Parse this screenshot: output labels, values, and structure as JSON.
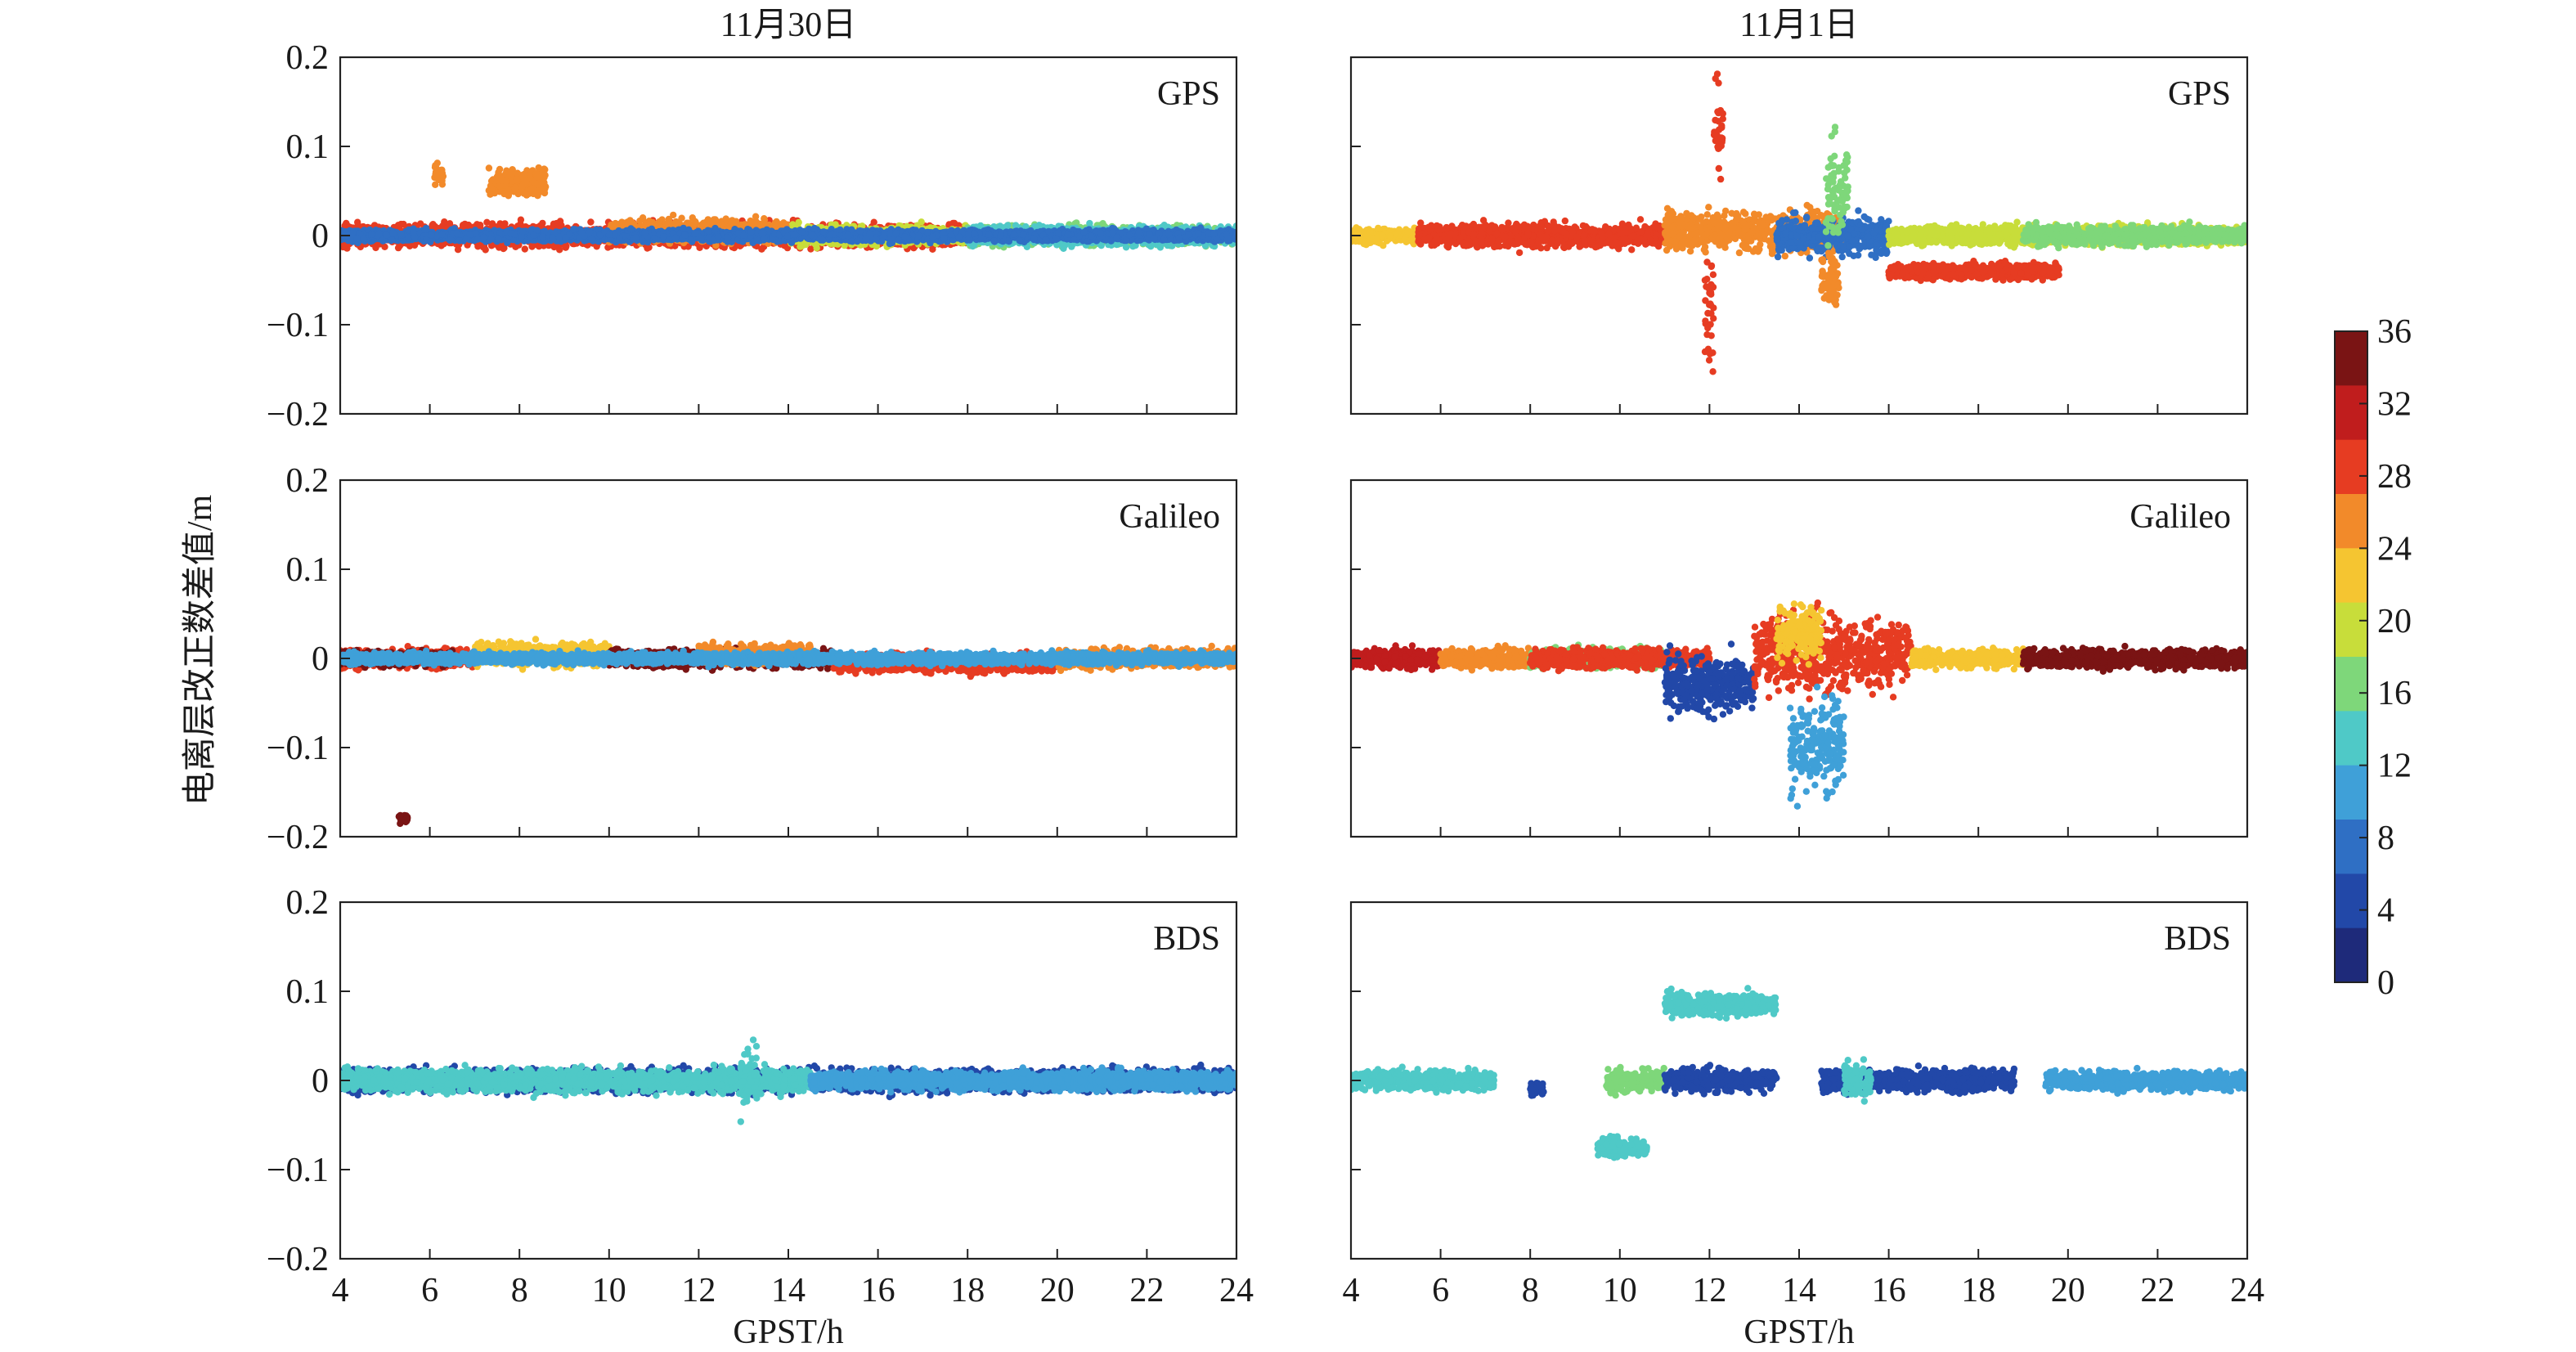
{
  "figure": {
    "ylabel": "电离层改正数差值/m",
    "xlabel": "GPST/h",
    "columns": [
      "11月30日",
      "11月1日"
    ],
    "colorbar": {
      "min": 0,
      "max": 36,
      "ticks": [
        "36",
        "32",
        "28",
        "24",
        "20",
        "16",
        "12",
        "8",
        "4",
        "0"
      ],
      "colors": [
        "#1e2a7a",
        "#2248a8",
        "#2f6fc4",
        "#3fa0d8",
        "#4fc9c7",
        "#7ed77a",
        "#c8dd3a",
        "#f5c531",
        "#f28a2a",
        "#e63c22",
        "#c01d1d",
        "#7a1414"
      ]
    }
  },
  "chart_data": [
    {
      "type": "scatter",
      "system": "GPS",
      "date": "11月30日",
      "xlim": [
        4,
        24
      ],
      "ylim": [
        -0.2,
        0.2
      ],
      "xticks": [
        "4",
        "6",
        "8",
        "10",
        "12",
        "14",
        "16",
        "18",
        "20",
        "22",
        "24"
      ],
      "yticks": [
        "0.2",
        "0.1",
        "0",
        "−0.1",
        "−0.2"
      ],
      "segments": [
        {
          "from": 4,
          "to": 18,
          "center": 0.0,
          "spread": 0.012,
          "color": "#e63c22"
        },
        {
          "from": 10,
          "to": 14,
          "center": 0.005,
          "spread": 0.012,
          "color": "#f28a2a"
        },
        {
          "from": 14,
          "to": 18,
          "center": 0.0,
          "spread": 0.01,
          "color": "#c8dd3a"
        },
        {
          "from": 18,
          "to": 24,
          "center": 0.0,
          "spread": 0.01,
          "color": "#7ed77a"
        },
        {
          "from": 18,
          "to": 24,
          "center": 0.0,
          "spread": 0.01,
          "color": "#4fc9c7"
        },
        {
          "from": 4,
          "to": 24,
          "center": 0.0,
          "spread": 0.006,
          "color": "#2f6fc4"
        },
        {
          "from": 7.3,
          "to": 8.6,
          "center": 0.06,
          "spread": 0.015,
          "color": "#f28a2a"
        },
        {
          "from": 6.1,
          "to": 6.3,
          "center": 0.07,
          "spread": 0.01,
          "color": "#f28a2a"
        }
      ]
    },
    {
      "type": "scatter",
      "system": "GPS",
      "date": "11月1日",
      "xlim": [
        4,
        24
      ],
      "ylim": [
        -0.2,
        0.2
      ],
      "xticks": [
        "4",
        "6",
        "8",
        "10",
        "12",
        "14",
        "16",
        "18",
        "20",
        "22",
        "24"
      ],
      "yticks": [
        "0.2",
        "0.1",
        "0",
        "−0.1",
        "−0.2"
      ],
      "segments": [
        {
          "from": 4,
          "to": 5.5,
          "center": 0.0,
          "spread": 0.008,
          "color": "#f5c531"
        },
        {
          "from": 5.5,
          "to": 11,
          "center": 0.0,
          "spread": 0.012,
          "color": "#e63c22"
        },
        {
          "from": 11,
          "to": 15,
          "center": 0.005,
          "spread": 0.02,
          "color": "#f28a2a"
        },
        {
          "from": 13.5,
          "to": 16,
          "center": 0.0,
          "spread": 0.02,
          "color": "#2f6fc4"
        },
        {
          "from": 16,
          "to": 19.8,
          "center": -0.04,
          "spread": 0.008,
          "color": "#e63c22"
        },
        {
          "from": 16,
          "to": 24,
          "center": 0.0,
          "spread": 0.01,
          "color": "#c8dd3a"
        },
        {
          "from": 19,
          "to": 24,
          "center": 0.0,
          "spread": 0.01,
          "color": "#7ed77a"
        },
        {
          "from": 11.9,
          "to": 12.1,
          "center": -0.08,
          "spread": 0.06,
          "color": "#e63c22"
        },
        {
          "from": 12.1,
          "to": 12.3,
          "center": 0.12,
          "spread": 0.05,
          "color": "#e63c22"
        },
        {
          "from": 14.6,
          "to": 15.1,
          "center": 0.05,
          "spread": 0.05,
          "color": "#7ed77a"
        },
        {
          "from": 14.5,
          "to": 14.9,
          "center": -0.05,
          "spread": 0.03,
          "color": "#f28a2a"
        }
      ]
    },
    {
      "type": "scatter",
      "system": "Galileo",
      "date": "11月30日",
      "xlim": [
        4,
        24
      ],
      "ylim": [
        -0.2,
        0.2
      ],
      "xticks": [
        "4",
        "6",
        "8",
        "10",
        "12",
        "14",
        "16",
        "18",
        "20",
        "22",
        "24"
      ],
      "yticks": [
        "0.2",
        "0.1",
        "0",
        "−0.1",
        "−0.2"
      ],
      "segments": [
        {
          "from": 4,
          "to": 7,
          "center": 0.0,
          "spread": 0.01,
          "color": "#e63c22"
        },
        {
          "from": 4,
          "to": 6.5,
          "center": 0.0,
          "spread": 0.008,
          "color": "#7a1414"
        },
        {
          "from": 7,
          "to": 10,
          "center": 0.005,
          "spread": 0.012,
          "color": "#f5c531"
        },
        {
          "from": 10,
          "to": 15,
          "center": 0.0,
          "spread": 0.01,
          "color": "#7a1414"
        },
        {
          "from": 12,
          "to": 14.5,
          "center": 0.005,
          "spread": 0.01,
          "color": "#f28a2a"
        },
        {
          "from": 15,
          "to": 20,
          "center": -0.005,
          "spread": 0.01,
          "color": "#e63c22"
        },
        {
          "from": 20,
          "to": 24,
          "center": 0.0,
          "spread": 0.01,
          "color": "#f28a2a"
        },
        {
          "from": 4,
          "to": 24,
          "center": 0.0,
          "spread": 0.006,
          "color": "#3fa0d8"
        },
        {
          "from": 5.3,
          "to": 5.5,
          "center": -0.18,
          "spread": 0.004,
          "color": "#7a1414"
        }
      ]
    },
    {
      "type": "scatter",
      "system": "Galileo",
      "date": "11月1日",
      "xlim": [
        4,
        24
      ],
      "ylim": [
        -0.2,
        0.2
      ],
      "xticks": [
        "4",
        "6",
        "8",
        "10",
        "12",
        "14",
        "16",
        "18",
        "20",
        "22",
        "24"
      ],
      "yticks": [
        "0.2",
        "0.1",
        "0",
        "−0.1",
        "−0.2"
      ],
      "segments": [
        {
          "from": 4,
          "to": 6,
          "center": 0.0,
          "spread": 0.01,
          "color": "#c01d1d"
        },
        {
          "from": 6,
          "to": 8,
          "center": 0.0,
          "spread": 0.01,
          "color": "#f28a2a"
        },
        {
          "from": 8,
          "to": 11,
          "center": 0.0,
          "spread": 0.01,
          "color": "#7ed77a"
        },
        {
          "from": 8,
          "to": 12,
          "center": 0.0,
          "spread": 0.01,
          "color": "#e63c22"
        },
        {
          "from": 11,
          "to": 13,
          "center": -0.03,
          "spread": 0.03,
          "color": "#2248a8"
        },
        {
          "from": 13,
          "to": 16.5,
          "center": 0.005,
          "spread": 0.04,
          "color": "#e63c22"
        },
        {
          "from": 13.5,
          "to": 14.5,
          "center": 0.03,
          "spread": 0.03,
          "color": "#f5c531"
        },
        {
          "from": 13.8,
          "to": 15,
          "center": -0.1,
          "spread": 0.05,
          "color": "#3fa0d8"
        },
        {
          "from": 16.5,
          "to": 19,
          "center": 0.0,
          "spread": 0.01,
          "color": "#f5c531"
        },
        {
          "from": 19,
          "to": 24,
          "center": 0.0,
          "spread": 0.01,
          "color": "#7a1414"
        }
      ]
    },
    {
      "type": "scatter",
      "system": "BDS",
      "date": "11月30日",
      "xlim": [
        4,
        24
      ],
      "ylim": [
        -0.2,
        0.2
      ],
      "xticks": [
        "4",
        "6",
        "8",
        "10",
        "12",
        "14",
        "16",
        "18",
        "20",
        "22",
        "24"
      ],
      "yticks": [
        "0.2",
        "0.1",
        "0",
        "−0.1",
        "−0.2"
      ],
      "segments": [
        {
          "from": 4,
          "to": 24,
          "center": 0.0,
          "spread": 0.012,
          "color": "#2248a8"
        },
        {
          "from": 4,
          "to": 14.5,
          "center": 0.0,
          "spread": 0.012,
          "color": "#4fc9c7"
        },
        {
          "from": 14.5,
          "to": 24,
          "center": 0.0,
          "spread": 0.01,
          "color": "#3fa0d8"
        },
        {
          "from": 12.9,
          "to": 13.3,
          "center": 0.0,
          "spread": 0.04,
          "color": "#4fc9c7"
        }
      ]
    },
    {
      "type": "scatter",
      "system": "BDS",
      "date": "11月1日",
      "xlim": [
        4,
        24
      ],
      "ylim": [
        -0.2,
        0.2
      ],
      "xticks": [
        "4",
        "6",
        "8",
        "10",
        "12",
        "14",
        "16",
        "18",
        "20",
        "22",
        "24"
      ],
      "yticks": [
        "0.2",
        "0.1",
        "0",
        "−0.1",
        "−0.2"
      ],
      "segments": [
        {
          "from": 4,
          "to": 7.2,
          "center": 0.0,
          "spread": 0.01,
          "color": "#4fc9c7"
        },
        {
          "from": 8,
          "to": 8.3,
          "center": -0.01,
          "spread": 0.008,
          "color": "#2248a8"
        },
        {
          "from": 9.5,
          "to": 10.6,
          "center": -0.075,
          "spread": 0.01,
          "color": "#4fc9c7"
        },
        {
          "from": 9.7,
          "to": 11,
          "center": 0.0,
          "spread": 0.012,
          "color": "#7ed77a"
        },
        {
          "from": 11,
          "to": 13.5,
          "center": 0.085,
          "spread": 0.012,
          "color": "#4fc9c7"
        },
        {
          "from": 11,
          "to": 13.5,
          "center": 0.0,
          "spread": 0.012,
          "color": "#2248a8"
        },
        {
          "from": 14.5,
          "to": 18.8,
          "center": 0.0,
          "spread": 0.012,
          "color": "#2248a8"
        },
        {
          "from": 15,
          "to": 15.6,
          "center": 0.0,
          "spread": 0.02,
          "color": "#4fc9c7"
        },
        {
          "from": 19.5,
          "to": 24,
          "center": 0.0,
          "spread": 0.01,
          "color": "#3fa0d8"
        }
      ]
    }
  ]
}
